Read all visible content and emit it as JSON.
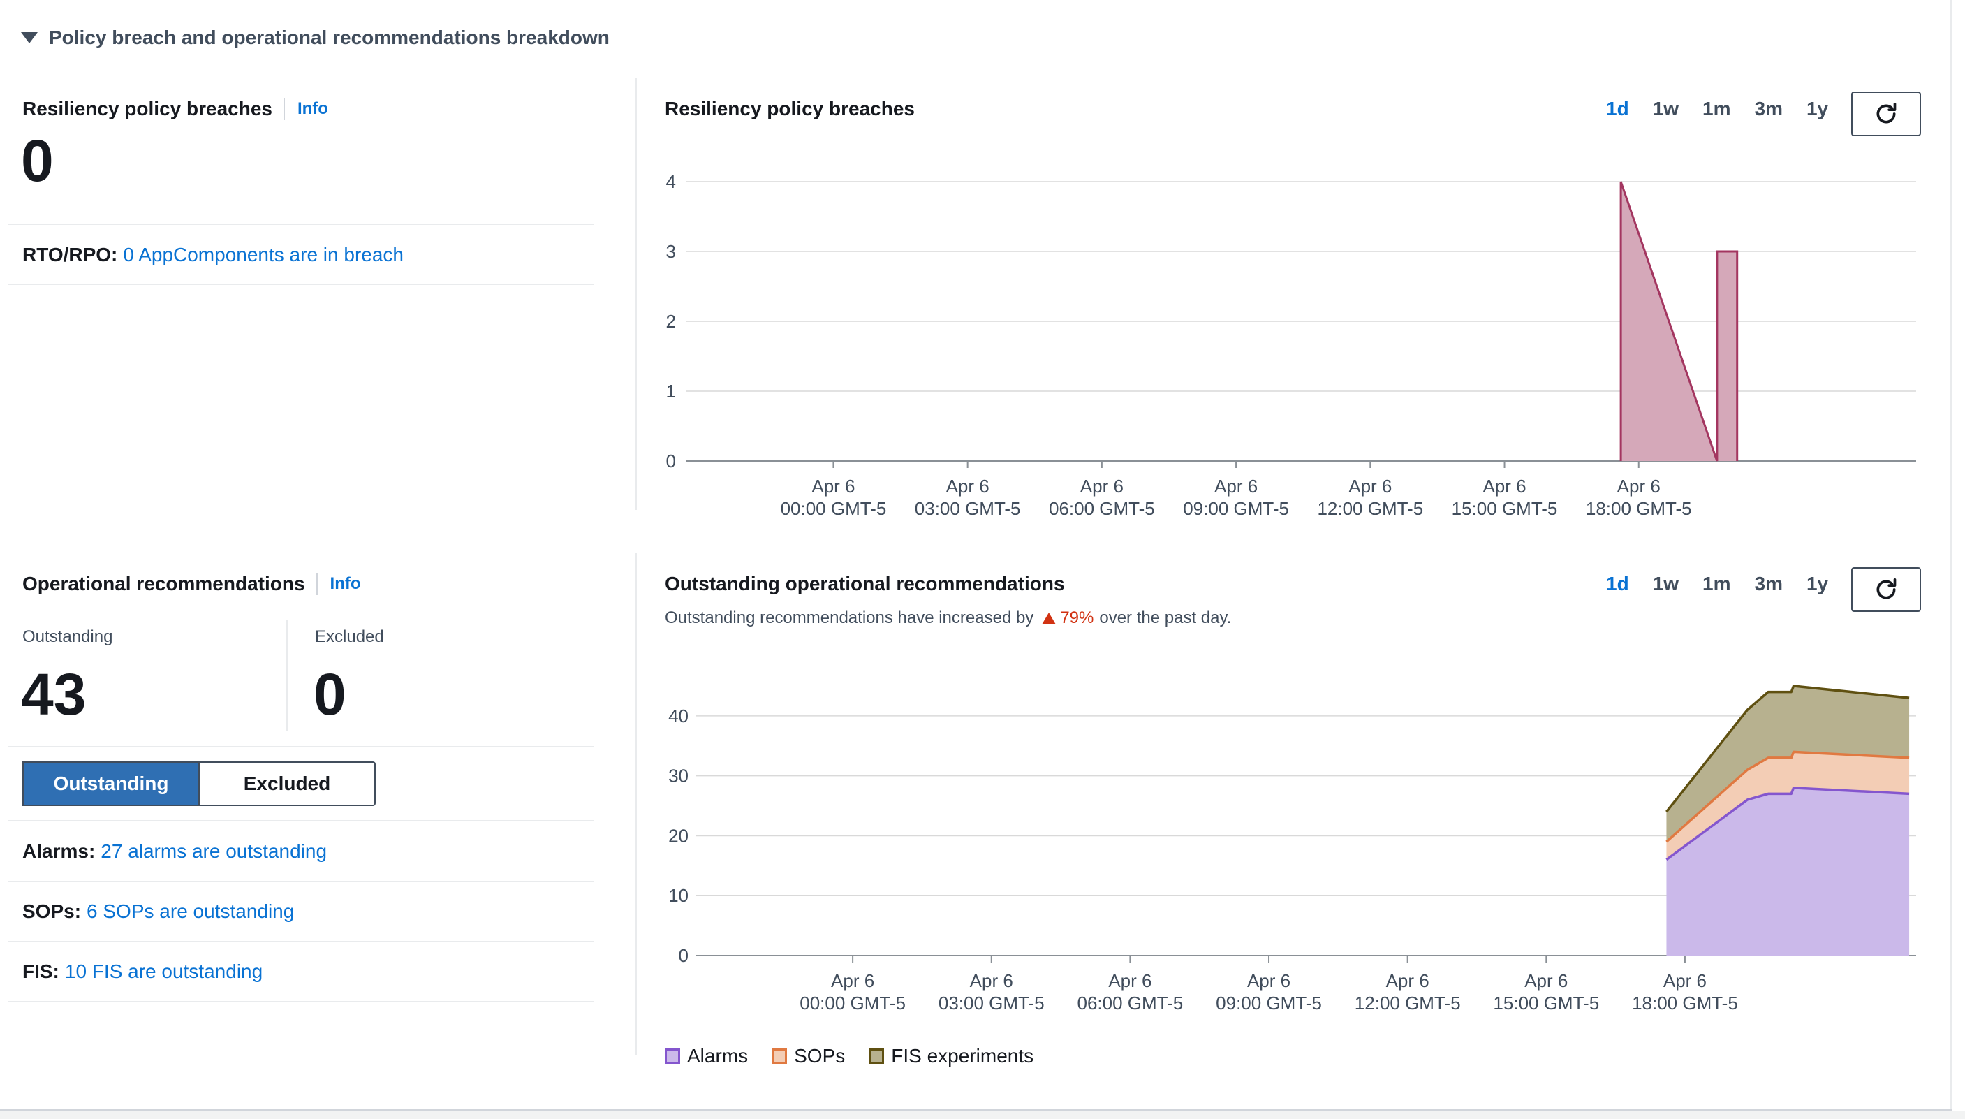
{
  "section": {
    "title": "Policy breach and operational recommendations breakdown"
  },
  "breaches": {
    "title": "Resiliency policy breaches",
    "info_label": "Info",
    "count": "0",
    "rto_rpo_key": "RTO/RPO:",
    "rto_rpo_link": "0 AppComponents are in breach"
  },
  "recommendations": {
    "title": "Operational recommendations",
    "info_label": "Info",
    "outstanding_label": "Outstanding",
    "outstanding_count": "43",
    "excluded_label": "Excluded",
    "excluded_count": "0",
    "toggle": {
      "outstanding": "Outstanding",
      "excluded": "Excluded",
      "selected": "Outstanding"
    },
    "rows": [
      {
        "key": "Alarms:",
        "link": "27 alarms are outstanding"
      },
      {
        "key": "SOPs:",
        "link": "6 SOPs are outstanding"
      },
      {
        "key": "FIS:",
        "link": "10 FIS are outstanding"
      }
    ]
  },
  "breach_chart_panel": {
    "title": "Resiliency policy breaches",
    "ranges": [
      "1d",
      "1w",
      "1m",
      "3m",
      "1y"
    ],
    "active_range": "1d",
    "refresh_icon": "refresh-icon"
  },
  "recs_chart_panel": {
    "title": "Outstanding operational recommendations",
    "subtitle_pre": "Outstanding recommendations have increased by",
    "trend_percent": "79%",
    "subtitle_post": "over the past day.",
    "trend_icon": "triangle-up-icon",
    "ranges": [
      "1d",
      "1w",
      "1m",
      "3m",
      "1y"
    ],
    "active_range": "1d",
    "refresh_icon": "refresh-icon"
  },
  "chart_data": [
    {
      "type": "area",
      "x_ticks": [
        [
          "Apr 6",
          "00:00 GMT-5"
        ],
        [
          "Apr 6",
          "03:00 GMT-5"
        ],
        [
          "Apr 6",
          "06:00 GMT-5"
        ],
        [
          "Apr 6",
          "09:00 GMT-5"
        ],
        [
          "Apr 6",
          "12:00 GMT-5"
        ],
        [
          "Apr 6",
          "15:00 GMT-5"
        ],
        [
          "Apr 6",
          "18:00 GMT-5"
        ]
      ],
      "xlim_hours": [
        -3.3,
        24.2
      ],
      "ylim": [
        0,
        4
      ],
      "y_ticks": [
        0,
        1,
        2,
        3,
        4
      ],
      "grid": true,
      "series": [
        {
          "color": "#a33660",
          "fill": "#d5a8b9",
          "points": [
            [
              17.6,
              0
            ],
            [
              17.6,
              4
            ],
            [
              19.75,
              0
            ],
            [
              19.75,
              3
            ],
            [
              20.2,
              3
            ],
            [
              20.2,
              0
            ]
          ]
        }
      ]
    },
    {
      "type": "area",
      "stacked": true,
      "x_ticks": [
        [
          "Apr 6",
          "00:00 GMT-5"
        ],
        [
          "Apr 6",
          "03:00 GMT-5"
        ],
        [
          "Apr 6",
          "06:00 GMT-5"
        ],
        [
          "Apr 6",
          "09:00 GMT-5"
        ],
        [
          "Apr 6",
          "12:00 GMT-5"
        ],
        [
          "Apr 6",
          "15:00 GMT-5"
        ],
        [
          "Apr 6",
          "18:00 GMT-5"
        ]
      ],
      "xlim_hours": [
        -3.4,
        23.0
      ],
      "ylim": [
        0,
        45
      ],
      "y_ticks": [
        0,
        10,
        20,
        30,
        40
      ],
      "grid": true,
      "x": [
        17.6,
        19.35,
        19.8,
        20.3,
        20.35,
        22.85
      ],
      "series": [
        {
          "name": "Alarms",
          "color": "#8456ce",
          "fill": "#cbb9ea",
          "values": [
            16,
            26,
            27,
            27,
            28,
            27
          ]
        },
        {
          "name": "SOPs",
          "color": "#e07941",
          "fill": "#f3cdb5",
          "values": [
            3,
            5,
            6,
            6,
            6,
            6
          ]
        },
        {
          "name": "FIS experiments",
          "color": "#5f5011",
          "fill": "#b7b18f",
          "values": [
            5,
            10,
            11,
            11,
            11,
            10
          ]
        }
      ],
      "legend_position": "bottom-left"
    }
  ]
}
